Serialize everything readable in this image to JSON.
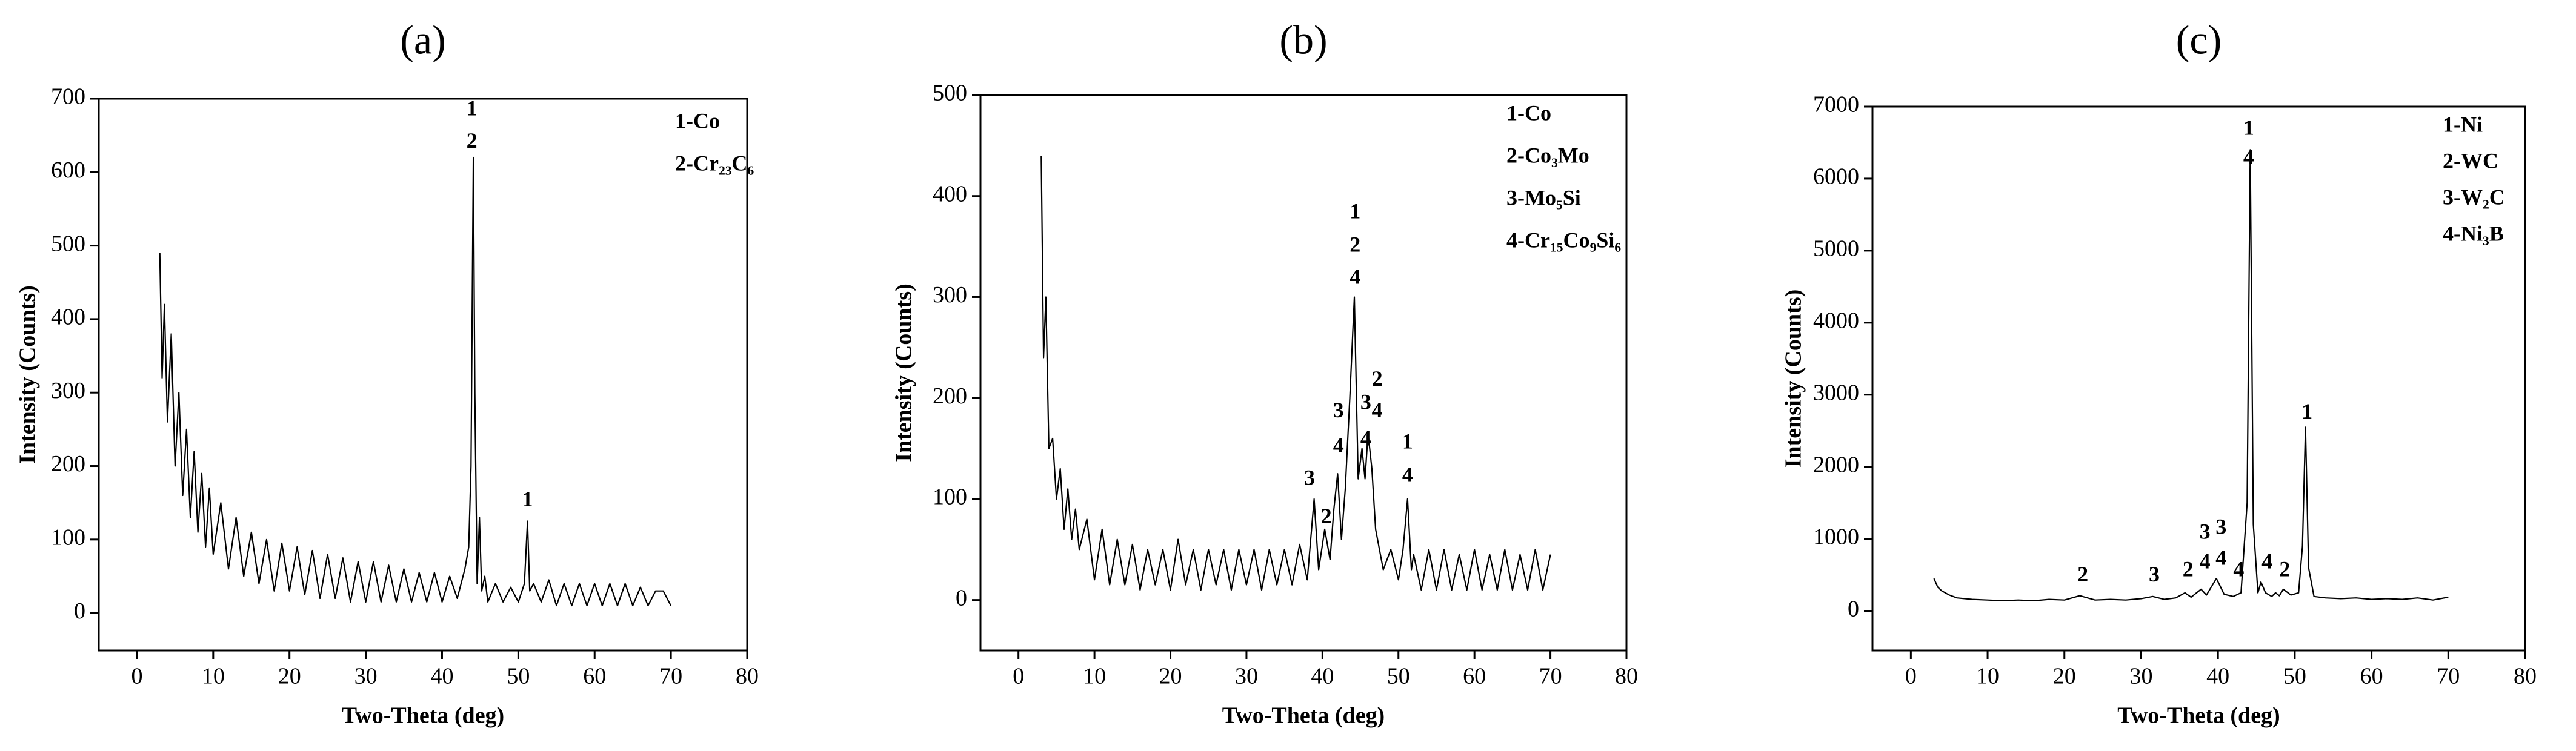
{
  "chart_data": [
    {
      "type": "line",
      "title": "(a)",
      "x_label": "Two-Theta (deg)",
      "y_label": "Intensity (Counts)",
      "color": "#000000",
      "grid": false,
      "xlim": [
        -5,
        80
      ],
      "xticks": [
        0,
        10,
        20,
        30,
        40,
        50,
        60,
        70,
        80
      ],
      "ylim": [
        -51,
        700
      ],
      "yticks": [
        0,
        100,
        200,
        300,
        400,
        500,
        600,
        700
      ],
      "x": [
        3,
        3.3,
        3.6,
        4,
        4.5,
        5,
        5.5,
        6,
        6.5,
        7,
        7.5,
        8,
        8.5,
        9,
        9.5,
        10,
        11,
        12,
        13,
        14,
        15,
        16,
        17,
        18,
        19,
        20,
        21,
        22,
        23,
        24,
        25,
        26,
        27,
        28,
        29,
        30,
        31,
        32,
        33,
        34,
        35,
        36,
        37,
        38,
        39,
        40,
        41,
        42,
        43,
        43.5,
        43.8,
        44.1,
        44.3,
        44.6,
        44.9,
        45.2,
        45.6,
        46,
        47,
        48,
        49,
        50,
        50.8,
        51.2,
        51.5,
        52,
        53,
        54,
        55,
        56,
        57,
        58,
        59,
        60,
        61,
        62,
        63,
        64,
        65,
        66,
        67,
        68,
        69,
        70
      ],
      "values": [
        490,
        320,
        420,
        260,
        380,
        200,
        300,
        160,
        250,
        130,
        220,
        110,
        190,
        90,
        170,
        80,
        150,
        60,
        130,
        50,
        110,
        40,
        100,
        30,
        95,
        30,
        90,
        25,
        85,
        20,
        80,
        20,
        75,
        15,
        70,
        15,
        70,
        15,
        65,
        15,
        60,
        15,
        55,
        15,
        55,
        15,
        50,
        20,
        60,
        90,
        200,
        620,
        300,
        40,
        130,
        30,
        50,
        15,
        40,
        15,
        35,
        15,
        40,
        125,
        30,
        40,
        15,
        45,
        10,
        40,
        10,
        40,
        10,
        40,
        10,
        40,
        10,
        40,
        10,
        35,
        10,
        30,
        30,
        10
      ],
      "annotations": [
        {
          "text": "1",
          "x": 43.9,
          "y": 684
        },
        {
          "text": "2",
          "x": 43.9,
          "y": 640
        },
        {
          "text": "1",
          "x": 51.2,
          "y": 152
        }
      ],
      "phase_labels": [
        "1-Co",
        "2-Cr₂₃C₆"
      ]
    },
    {
      "type": "line",
      "title": "(b)",
      "x_label": "Two-Theta (deg)",
      "y_label": "Intensity (Counts)",
      "color": "#000000",
      "grid": false,
      "xlim": [
        -5,
        80
      ],
      "xticks": [
        0,
        10,
        20,
        30,
        40,
        50,
        60,
        70,
        80
      ],
      "ylim": [
        -50,
        500
      ],
      "yticks": [
        0,
        100,
        200,
        300,
        400,
        500
      ],
      "x": [
        3,
        3.3,
        3.6,
        4,
        4.5,
        5,
        5.5,
        6,
        6.5,
        7,
        7.5,
        8,
        9,
        10,
        11,
        12,
        13,
        14,
        15,
        16,
        17,
        18,
        19,
        20,
        21,
        22,
        23,
        24,
        25,
        26,
        27,
        28,
        29,
        30,
        31,
        32,
        33,
        34,
        35,
        36,
        37,
        38,
        38.9,
        39.5,
        40.3,
        41,
        41.5,
        42,
        42.5,
        43,
        43.6,
        44.2,
        44.7,
        45.2,
        45.6,
        46,
        46.5,
        47,
        47.5,
        48,
        49,
        50,
        50.6,
        51.2,
        51.7,
        52,
        53,
        54,
        55,
        56,
        57,
        58,
        59,
        60,
        61,
        62,
        63,
        64,
        65,
        66,
        67,
        68,
        69,
        70
      ],
      "values": [
        440,
        240,
        300,
        150,
        160,
        100,
        130,
        70,
        110,
        60,
        90,
        50,
        80,
        20,
        70,
        15,
        60,
        15,
        55,
        10,
        50,
        15,
        50,
        10,
        60,
        15,
        50,
        10,
        50,
        15,
        50,
        10,
        50,
        15,
        50,
        10,
        50,
        15,
        50,
        15,
        55,
        20,
        100,
        30,
        70,
        40,
        90,
        125,
        60,
        110,
        200,
        300,
        120,
        150,
        120,
        165,
        130,
        70,
        50,
        30,
        50,
        20,
        50,
        100,
        30,
        45,
        10,
        50,
        10,
        50,
        10,
        45,
        10,
        50,
        10,
        45,
        10,
        50,
        10,
        45,
        10,
        50,
        10,
        45
      ],
      "annotations": [
        {
          "text": "3",
          "x": 38.3,
          "y": 119
        },
        {
          "text": "2",
          "x": 40.5,
          "y": 81
        },
        {
          "text": "3",
          "x": 42.1,
          "y": 186
        },
        {
          "text": "4",
          "x": 42.1,
          "y": 151
        },
        {
          "text": "1",
          "x": 44.3,
          "y": 383
        },
        {
          "text": "2",
          "x": 44.3,
          "y": 350
        },
        {
          "text": "4",
          "x": 44.3,
          "y": 318
        },
        {
          "text": "3",
          "x": 45.7,
          "y": 194
        },
        {
          "text": "4",
          "x": 45.7,
          "y": 158
        },
        {
          "text": "2",
          "x": 47.2,
          "y": 217
        },
        {
          "text": "4",
          "x": 47.2,
          "y": 186
        },
        {
          "text": "1",
          "x": 51.2,
          "y": 155
        },
        {
          "text": "4",
          "x": 51.2,
          "y": 122
        }
      ],
      "phase_labels": [
        "1-Co",
        "2-Co₃Mo",
        "3-Mo₅Si",
        "4-Cr₁₅Co₉Si₆"
      ]
    },
    {
      "type": "line",
      "title": "(c)",
      "x_label": "Two-Theta (deg)",
      "y_label": "Intensity (Counts)",
      "color": "#000000",
      "grid": false,
      "xlim": [
        -5,
        80
      ],
      "xticks": [
        0,
        10,
        20,
        30,
        40,
        50,
        60,
        70,
        80
      ],
      "ylim": [
        -550,
        7000
      ],
      "yticks": [
        0,
        1000,
        2000,
        3000,
        4000,
        5000,
        6000,
        7000
      ],
      "x": [
        3,
        3.5,
        4,
        5,
        6,
        8,
        10,
        12,
        14,
        16,
        18,
        20,
        22,
        24,
        26,
        28,
        30,
        31.5,
        33,
        34.5,
        35.7,
        36.5,
        37.8,
        38.5,
        39.8,
        40.8,
        42,
        43,
        43.8,
        44.2,
        44.6,
        45.2,
        45.6,
        46.2,
        47,
        47.5,
        48,
        48.5,
        49.5,
        50.5,
        51,
        51.4,
        51.8,
        52.5,
        54,
        56,
        58,
        60,
        62,
        64,
        66,
        68,
        70
      ],
      "values": [
        450,
        330,
        280,
        220,
        180,
        160,
        150,
        140,
        150,
        140,
        160,
        150,
        210,
        150,
        160,
        150,
        170,
        200,
        160,
        180,
        250,
        190,
        300,
        220,
        450,
        230,
        200,
        250,
        1500,
        6400,
        1200,
        250,
        400,
        250,
        200,
        250,
        210,
        300,
        220,
        250,
        900,
        2550,
        600,
        200,
        180,
        170,
        180,
        160,
        170,
        160,
        180,
        150,
        190
      ],
      "annotations": [
        {
          "text": "2",
          "x": 22.4,
          "y": 480
        },
        {
          "text": "3",
          "x": 31.7,
          "y": 480
        },
        {
          "text": "2",
          "x": 36.1,
          "y": 550
        },
        {
          "text": "3",
          "x": 38.3,
          "y": 1070
        },
        {
          "text": "4",
          "x": 38.3,
          "y": 660
        },
        {
          "text": "3",
          "x": 40.4,
          "y": 1140
        },
        {
          "text": "4",
          "x": 40.4,
          "y": 710
        },
        {
          "text": "4",
          "x": 42.7,
          "y": 550
        },
        {
          "text": "1",
          "x": 44.0,
          "y": 6680
        },
        {
          "text": "4",
          "x": 44.0,
          "y": 6270
        },
        {
          "text": "4",
          "x": 46.4,
          "y": 660
        },
        {
          "text": "2",
          "x": 48.7,
          "y": 550
        },
        {
          "text": "1",
          "x": 51.6,
          "y": 2740
        }
      ],
      "phase_labels": [
        "1-Ni",
        "2-WC",
        "3-W₂C",
        "4-Ni₃B"
      ]
    }
  ]
}
